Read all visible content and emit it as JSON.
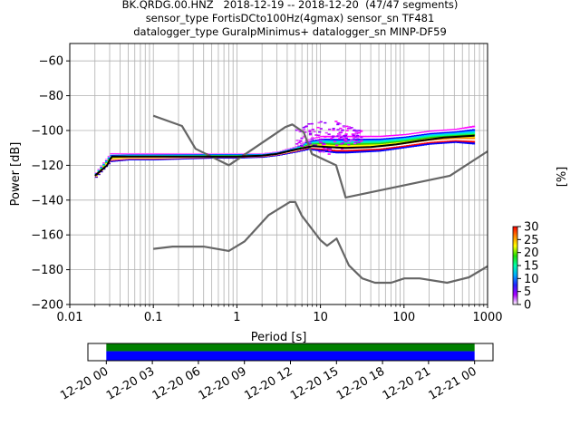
{
  "header": {
    "line1": "BK.QRDG.00.HNZ   2018-12-19 -- 2018-12-20  (47/47 segments)",
    "line2": "sensor_type FortisDCto100Hz(4gmax) sensor_sn TF481",
    "line3": "datalogger_type GuralpMinimus+ datalogger_sn MINP-DF59"
  },
  "chart_data": [
    {
      "type": "heatmap",
      "xlabel": "Period [s]",
      "ylabel": "Power [dB]",
      "x_scale": "log",
      "xlim": [
        0.01,
        1000
      ],
      "ylim": [
        -200,
        -50
      ],
      "grid": true,
      "x_ticks": [
        {
          "value": 0.01,
          "label": "0.01"
        },
        {
          "value": 0.1,
          "label": "0.1"
        },
        {
          "value": 1,
          "label": "1"
        },
        {
          "value": 10,
          "label": "10"
        },
        {
          "value": 100,
          "label": "100"
        },
        {
          "value": 1000,
          "label": "1000"
        }
      ],
      "y_ticks": [
        {
          "value": -60,
          "label": "−60"
        },
        {
          "value": -80,
          "label": "−80"
        },
        {
          "value": -100,
          "label": "−100"
        },
        {
          "value": -120,
          "label": "−120"
        },
        {
          "value": -140,
          "label": "−140"
        },
        {
          "value": -160,
          "label": "−160"
        },
        {
          "value": -180,
          "label": "−180"
        },
        {
          "value": -200,
          "label": "−200"
        }
      ],
      "series": [
        {
          "role": "high-noise-model",
          "color": "#666666",
          "x": [
            0.1,
            0.22,
            0.32,
            0.8,
            3.8,
            4.6,
            6.3,
            7.9,
            15.4,
            20,
            354.8,
            1000
          ],
          "y": [
            -91.5,
            -97.4,
            -110.5,
            -120,
            -98,
            -96.5,
            -101,
            -113.5,
            -120,
            -138.5,
            -126,
            -112
          ]
        },
        {
          "role": "low-noise-model",
          "color": "#666666",
          "x": [
            0.1,
            0.17,
            0.4,
            0.8,
            1.24,
            2.4,
            4.3,
            5,
            6,
            10,
            12,
            15.6,
            21.9,
            31.6,
            45,
            70,
            101,
            154,
            328,
            600,
            1000
          ],
          "y": [
            -168,
            -166.7,
            -166.7,
            -169.2,
            -163.7,
            -148.6,
            -141.1,
            -141.1,
            -149,
            -163,
            -166.2,
            -162.1,
            -177.5,
            -185,
            -187.5,
            -187.5,
            -185,
            -185,
            -187.5,
            -184.4,
            -178
          ]
        },
        {
          "role": "mode",
          "color": "#000000",
          "x": [
            0.02,
            0.025,
            0.028,
            0.03,
            0.032,
            0.05,
            0.1,
            0.3,
            1,
            2,
            3,
            5,
            8,
            12,
            20,
            40,
            80,
            150,
            300,
            700
          ],
          "y": [
            -126,
            -122,
            -120,
            -117,
            -115,
            -115,
            -115,
            -115,
            -115,
            -114.5,
            -113.5,
            -111,
            -109,
            -109.5,
            -110,
            -109.5,
            -108,
            -106,
            -104,
            -103
          ]
        }
      ],
      "density_band": {
        "x": [
          0.02,
          0.03,
          0.05,
          0.1,
          0.5,
          1,
          2,
          3,
          5,
          7,
          10,
          15,
          20,
          50,
          100,
          200,
          400,
          700
        ],
        "lower": [
          -127,
          -118,
          -117,
          -117,
          -116,
          -116,
          -115.5,
          -114.5,
          -112.5,
          -111,
          -112,
          -113,
          -113,
          -112,
          -110,
          -108,
          -107,
          -108
        ],
        "upper": [
          -124,
          -113,
          -113,
          -113,
          -113,
          -113,
          -113,
          -112,
          -109,
          -105,
          -103,
          -103,
          -103,
          -103,
          -102,
          -100,
          -99,
          -97
        ]
      },
      "scatter_cloud": {
        "x_range": [
          5,
          30
        ],
        "y_range": [
          -114,
          -92
        ]
      }
    },
    {
      "type": "colorbar",
      "label": "[%]",
      "range": [
        0,
        30
      ],
      "ticks": [
        {
          "value": 0,
          "label": "0"
        },
        {
          "value": 5,
          "label": "5"
        },
        {
          "value": 10,
          "label": "10"
        },
        {
          "value": 15,
          "label": "15"
        },
        {
          "value": 20,
          "label": "20"
        },
        {
          "value": 25,
          "label": "25"
        },
        {
          "value": 30,
          "label": "30"
        }
      ],
      "colormap": [
        "#ffffff",
        "#aa00ff",
        "#2222ff",
        "#00aaff",
        "#00ffaa",
        "#22dd00",
        "#ffff00",
        "#ff8800",
        "#ff0000"
      ]
    },
    {
      "type": "timeline",
      "x_ticks": [
        {
          "value": 0,
          "label": "12-20 00"
        },
        {
          "value": 3,
          "label": "12-20 03"
        },
        {
          "value": 6,
          "label": "12-20 06"
        },
        {
          "value": 9,
          "label": "12-20 09"
        },
        {
          "value": 12,
          "label": "12-20 12"
        },
        {
          "value": 15,
          "label": "12-20 15"
        },
        {
          "value": 18,
          "label": "12-20 18"
        },
        {
          "value": 21,
          "label": "12-20 21"
        },
        {
          "value": 24,
          "label": "12-21 00"
        }
      ],
      "xlim": [
        -1.2,
        25.2
      ],
      "data_coverage": [
        0,
        24
      ],
      "data_color": "#008000",
      "psd_coverage": [
        0,
        24
      ],
      "psd_color": "#0000ff"
    }
  ]
}
